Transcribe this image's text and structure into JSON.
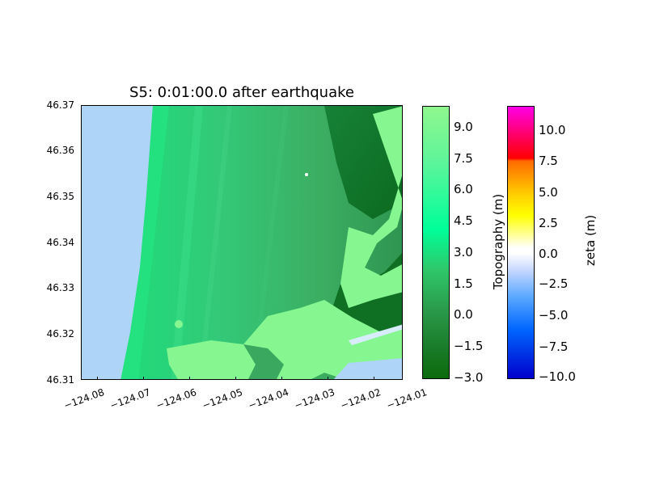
{
  "figure": {
    "title": "S5: 0:01:00.0 after earthquake"
  },
  "map": {
    "lat_ticks": [
      "46.37",
      "46.36",
      "46.35",
      "46.34",
      "46.33",
      "46.32",
      "46.31"
    ],
    "lon_ticks": [
      "−124.08",
      "−124.07",
      "−124.06",
      "−124.05",
      "−124.04",
      "−124.03",
      "−124.02",
      "−124.01"
    ],
    "colors": {
      "water": "#aed4f8",
      "topo_high": "#86f790",
      "topo_mid": "#2ee67e",
      "topo_low": "#1c8a3a",
      "topo_lowest": "#0a6b1a"
    }
  },
  "colorbars": {
    "topography": {
      "label": "Topography (m)",
      "ticks": [
        "9.0",
        "7.5",
        "6.0",
        "4.5",
        "3.0",
        "1.5",
        "0.0",
        "−1.5",
        "−3.0"
      ]
    },
    "zeta": {
      "label": "zeta (m)",
      "ticks": [
        "10.0",
        "7.5",
        "5.0",
        "2.5",
        "0.0",
        "−2.5",
        "−5.0",
        "−7.5",
        "−10.0"
      ]
    }
  }
}
